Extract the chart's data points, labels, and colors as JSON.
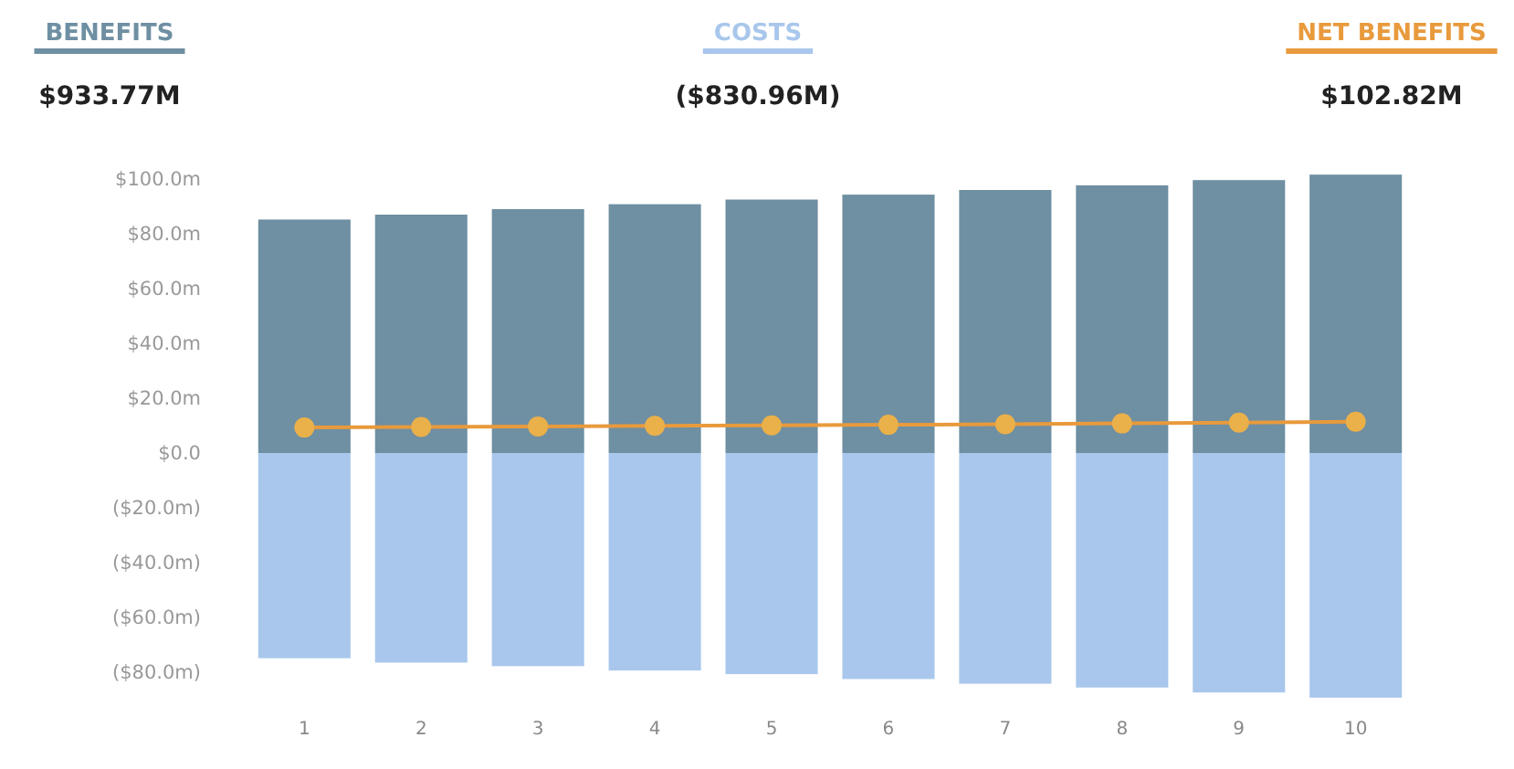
{
  "chart_data": {
    "type": "bar",
    "stacked": true,
    "legend": "top",
    "categories": [
      "1",
      "2",
      "3",
      "4",
      "5",
      "6",
      "7",
      "8",
      "9",
      "10"
    ],
    "series": [
      {
        "name": "BENEFITS",
        "color": "#6f8fa2",
        "values": [
          85.2,
          87,
          89,
          90.8,
          92.5,
          94.3,
          96,
          97.7,
          99.6,
          101.6
        ]
      },
      {
        "name": "COSTS",
        "color": "#a9c7ec",
        "values": [
          -74.9,
          -76.5,
          -77.8,
          -79.4,
          -80.7,
          -82.5,
          -84.2,
          -85.6,
          -87.4,
          -89.3
        ]
      },
      {
        "name": "NET BENEFITS",
        "type": "line",
        "color": "#e89a3c",
        "marker": "circle",
        "values": [
          9.3,
          9.5,
          9.7,
          9.9,
          10.1,
          10.3,
          10.5,
          10.8,
          11.1,
          11.4
        ]
      }
    ],
    "annotations": [
      "$933.77M",
      "($830.96M)",
      "$102.82M"
    ],
    "ylim": [
      -92,
      104
    ],
    "yticks": [
      {
        "value": 100,
        "label": "$100.0m"
      },
      {
        "value": 80,
        "label": "$80.0m"
      },
      {
        "value": 60,
        "label": "$60.0m"
      },
      {
        "value": 40,
        "label": "$40.0m"
      },
      {
        "value": 20,
        "label": "$20.0m"
      },
      {
        "value": 0,
        "label": "$0.0"
      },
      {
        "value": -20,
        "label": "($20.0m)"
      },
      {
        "value": -40,
        "label": "($40.0m)"
      },
      {
        "value": -60,
        "label": "($60.0m)"
      },
      {
        "value": -80,
        "label": "($80.0m)"
      }
    ]
  }
}
